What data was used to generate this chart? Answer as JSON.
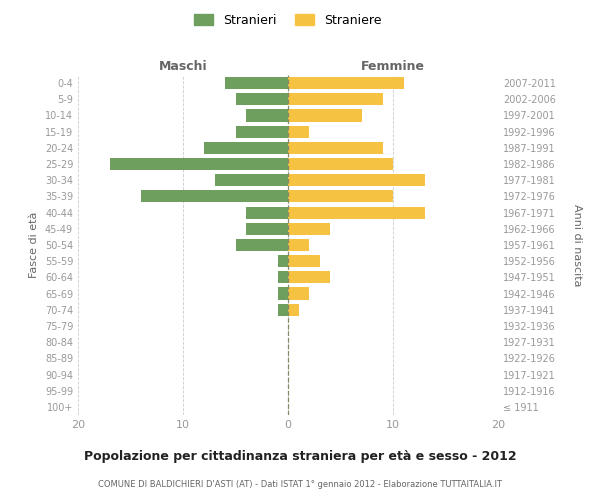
{
  "age_groups": [
    "100+",
    "95-99",
    "90-94",
    "85-89",
    "80-84",
    "75-79",
    "70-74",
    "65-69",
    "60-64",
    "55-59",
    "50-54",
    "45-49",
    "40-44",
    "35-39",
    "30-34",
    "25-29",
    "20-24",
    "15-19",
    "10-14",
    "5-9",
    "0-4"
  ],
  "birth_years": [
    "≤ 1911",
    "1912-1916",
    "1917-1921",
    "1922-1926",
    "1927-1931",
    "1932-1936",
    "1937-1941",
    "1942-1946",
    "1947-1951",
    "1952-1956",
    "1957-1961",
    "1962-1966",
    "1967-1971",
    "1972-1976",
    "1977-1981",
    "1982-1986",
    "1987-1991",
    "1992-1996",
    "1997-2001",
    "2002-2006",
    "2007-2011"
  ],
  "maschi": [
    0,
    0,
    0,
    0,
    0,
    0,
    1,
    1,
    1,
    1,
    5,
    4,
    4,
    14,
    7,
    17,
    8,
    5,
    4,
    5,
    6
  ],
  "femmine": [
    0,
    0,
    0,
    0,
    0,
    0,
    1,
    2,
    4,
    3,
    2,
    4,
    13,
    10,
    13,
    10,
    9,
    2,
    7,
    9,
    11
  ],
  "color_maschi": "#6e9f5e",
  "color_femmine": "#f5c242",
  "title": "Popolazione per cittadinanza straniera per età e sesso - 2012",
  "subtitle": "COMUNE DI BALDICHIERI D'ASTI (AT) - Dati ISTAT 1° gennaio 2012 - Elaborazione TUTTAITALIA.IT",
  "header_left": "Maschi",
  "header_right": "Femmine",
  "ylabel_left": "Fasce di età",
  "ylabel_right": "Anni di nascita",
  "legend_maschi": "Stranieri",
  "legend_femmine": "Straniere",
  "xlim": 20,
  "background_color": "#ffffff",
  "grid_color": "#cccccc",
  "label_color": "#666666",
  "tick_color": "#999999"
}
